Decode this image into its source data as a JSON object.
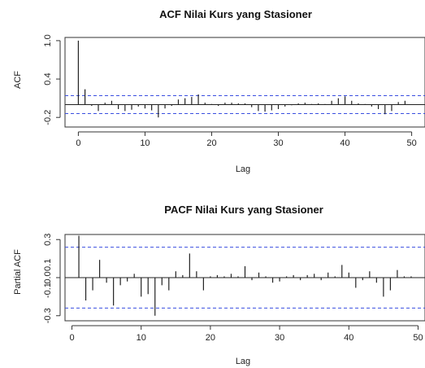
{
  "chart_data": [
    {
      "type": "bar",
      "title": "ACF Nilai Kurs yang Stasioner",
      "xlabel": "Lag",
      "ylabel": "ACF",
      "xlim": [
        -2,
        52
      ],
      "ylim": [
        -0.35,
        1.05
      ],
      "xticks": [
        0,
        10,
        20,
        30,
        40,
        50
      ],
      "xtick_labels": [
        "0",
        "10",
        "20",
        "30",
        "40",
        "50"
      ],
      "yticks": [
        -0.2,
        0.4,
        1.0
      ],
      "ytick_labels": [
        "-0.2",
        "0.4",
        "1.0"
      ],
      "confidence_bound": 0.14,
      "lags": [
        0,
        1,
        2,
        3,
        4,
        5,
        6,
        7,
        8,
        9,
        10,
        11,
        12,
        13,
        14,
        15,
        16,
        17,
        18,
        19,
        20,
        21,
        22,
        23,
        24,
        25,
        26,
        27,
        28,
        29,
        30,
        31,
        32,
        33,
        34,
        35,
        36,
        37,
        38,
        39,
        40,
        41,
        42,
        43,
        44,
        45,
        46,
        47,
        48,
        49
      ],
      "values": [
        1.0,
        0.24,
        -0.02,
        -0.1,
        0.03,
        0.06,
        -0.07,
        -0.1,
        -0.08,
        -0.03,
        -0.06,
        -0.09,
        -0.2,
        -0.06,
        -0.02,
        0.08,
        0.1,
        0.12,
        0.16,
        0.03,
        0.01,
        -0.02,
        0.03,
        0.03,
        0.02,
        0.02,
        -0.04,
        -0.1,
        -0.11,
        -0.09,
        -0.07,
        -0.03,
        -0.01,
        0.02,
        0.03,
        0.01,
        0.02,
        0.01,
        0.06,
        0.1,
        0.13,
        0.06,
        0.02,
        0.01,
        -0.03,
        -0.07,
        -0.15,
        -0.1,
        0.04,
        0.06
      ]
    },
    {
      "type": "bar",
      "title": "PACF Nilai Kurs yang Stasioner",
      "xlabel": "Lag",
      "ylabel": "Partial ACF",
      "xlim": [
        -1,
        51
      ],
      "ylim": [
        -0.34,
        0.34
      ],
      "xticks": [
        0,
        10,
        20,
        30,
        40,
        50
      ],
      "xtick_labels": [
        "0",
        "10",
        "20",
        "30",
        "40",
        "50"
      ],
      "yticks": [
        -0.3,
        0.0,
        0.3
      ],
      "ytick_labels": [
        "-0.3",
        "0.0",
        "0.3"
      ],
      "inner_ytick_labels": [
        "0.1",
        "-0.1"
      ],
      "confidence_bound": 0.24,
      "lags": [
        1,
        2,
        3,
        4,
        5,
        6,
        7,
        8,
        9,
        10,
        11,
        12,
        13,
        14,
        15,
        16,
        17,
        18,
        19,
        20,
        21,
        22,
        23,
        24,
        25,
        26,
        27,
        28,
        29,
        30,
        31,
        32,
        33,
        34,
        35,
        36,
        37,
        38,
        39,
        40,
        41,
        42,
        43,
        44,
        45,
        46,
        47,
        48,
        49
      ],
      "values": [
        0.33,
        -0.18,
        -0.1,
        0.14,
        -0.04,
        -0.22,
        -0.06,
        -0.03,
        0.03,
        -0.15,
        -0.13,
        -0.3,
        -0.06,
        -0.1,
        0.05,
        0.02,
        0.19,
        0.05,
        -0.1,
        0.01,
        0.02,
        0.01,
        0.03,
        0.01,
        0.09,
        -0.02,
        0.04,
        0.01,
        -0.04,
        -0.03,
        0.01,
        0.02,
        -0.02,
        0.02,
        0.03,
        -0.02,
        0.04,
        0.01,
        0.1,
        0.04,
        -0.08,
        -0.02,
        0.05,
        -0.04,
        -0.15,
        -0.1,
        0.06,
        0.01,
        0.01
      ]
    }
  ]
}
